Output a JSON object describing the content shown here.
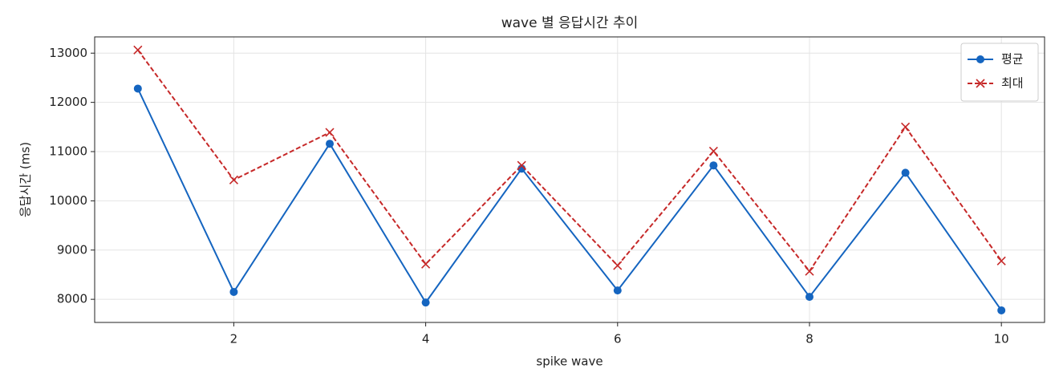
{
  "chart_data": {
    "type": "line",
    "title": "wave 별 응답시간 추이",
    "xlabel": "spike wave",
    "ylabel": "응답시간 (ms)",
    "x": [
      1,
      2,
      3,
      4,
      5,
      6,
      7,
      8,
      9,
      10
    ],
    "series": [
      {
        "name": "평균",
        "color": "#1565c0",
        "marker": "o",
        "linestyle": "solid",
        "values": [
          12280,
          8150,
          11160,
          7935,
          10655,
          8180,
          10720,
          8050,
          10570,
          7775
        ]
      },
      {
        "name": "최대",
        "color": "#c62828",
        "marker": "x",
        "linestyle": "dashed",
        "values": [
          13065,
          10425,
          11390,
          8715,
          10720,
          8685,
          11010,
          8570,
          11500,
          8780
        ]
      }
    ],
    "xlim": [
      0.55,
      10.45
    ],
    "xticks": [
      2,
      4,
      6,
      8,
      10
    ],
    "ylim": [
      7530,
      13330
    ],
    "yticks": [
      8000,
      9000,
      10000,
      11000,
      12000,
      13000
    ],
    "grid": true,
    "legend": "upper right"
  }
}
